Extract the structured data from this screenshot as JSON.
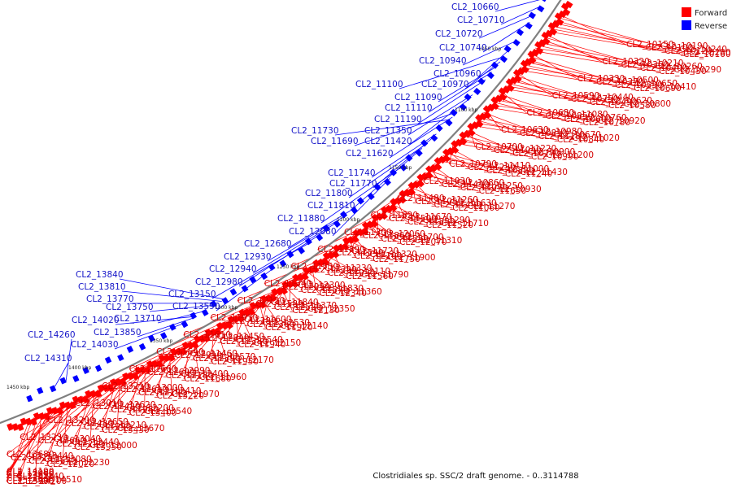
{
  "title": "Clostridiales sp. SSC/2 draft genome. - 0..3114788",
  "legend": [
    {
      "label": "Forward",
      "color": "#ff0000"
    },
    {
      "label": "Reverse",
      "color": "#0000ff"
    }
  ],
  "colors": {
    "forward": "#ff0000",
    "reverse": "#0000ff",
    "backbone": "#808080"
  },
  "ticks": [
    "1050 kbp",
    "1100 kbp",
    "1150 kbp",
    "1200 kbp",
    "1250 kbp",
    "1300 kbp",
    "1350 kbp",
    "1400 kbp",
    "1450 kbp"
  ],
  "forward_labels": [
    "CL2_10150",
    "CL2_10190",
    "CL2_10100",
    "CL2_10240",
    "CL2_10120",
    "CL2_10280",
    "CL2_10160",
    "CL2_10320",
    "CL2_10210",
    "CL2_10360",
    "CL2_10260",
    "CL2_10400",
    "CL2_10290",
    "CL2_10430",
    "CL2_10330",
    "CL2_10500",
    "CL2_10370",
    "CL2_10650",
    "CL2_10550",
    "CL2_10410",
    "CL2_10690",
    "CL2_10590",
    "CL2_10440",
    "CL2_10750",
    "CL2_10620",
    "CL2_10490",
    "CL2_10800",
    "CL2_10530",
    "CL2_10680",
    "CL2_11080",
    "CL2_10850",
    "CL2_10760",
    "CL2_10600",
    "CL2_10920",
    "CL2_10780",
    "CL2_10630",
    "CL2_10980",
    "CL2_10810",
    "CL2_10670",
    "CL2_11180",
    "CL2_11020",
    "CL2_10840",
    "CL2_10700",
    "CL2_11220",
    "CL2_11040",
    "CL2_10900",
    "CL2_10770",
    "CL2_11200",
    "CL2_10990",
    "CL2_10790",
    "CL2_11410",
    "CL2_11230",
    "CL2_11000",
    "CL2_10820",
    "CL2_11430",
    "CL2_11240",
    "CL2_11030",
    "CL2_10860",
    "CL2_11440",
    "CL2_11250",
    "CL2_11070",
    "CL2_10930",
    "CL2_11650",
    "CL2_11480",
    "CL2_11260",
    "CL2_11050",
    "CL2_11630",
    "CL2_11490",
    "CL2_11270",
    "CL2_11060",
    "CL2_11820",
    "CL2_11670",
    "CL2_11500",
    "CL2_11290",
    "CL2_11850",
    "CL2_11710",
    "CL2_11520",
    "CL2_11300",
    "CL2_12060",
    "CL2_11860",
    "CL2_11700",
    "CL2_11530",
    "CL2_11310",
    "CL2_12070",
    "CL2_11890",
    "CL2_11720",
    "CL2_11540",
    "CL2_11320",
    "CL2_12100",
    "CL2_11900",
    "CL2_11750",
    "CL2_11550",
    "CL2_11330",
    "CL2_12320",
    "CL2_12110",
    "CL2_11930",
    "CL2_11790",
    "CL2_11560",
    "CL2_11340",
    "CL2_12300",
    "CL2_12010",
    "CL2_11830",
    "CL2_11570",
    "CL2_11360",
    "CL2_12340",
    "CL2_12120",
    "CL2_11840",
    "CL2_11580",
    "CL2_11370",
    "CL2_12520",
    "CL2_12350",
    "CL2_12130",
    "CL2_11910",
    "CL2_11600",
    "CL2_11380",
    "CL2_12530",
    "CL2_12360",
    "CL2_12140",
    "CL2_11920",
    "CL2_11610",
    "CL2_11450",
    "CL2_12840",
    "CL2_12540",
    "CL2_12380",
    "CL2_12150",
    "CL2_11940",
    "CL2_11640",
    "CL2_11460",
    "CL2_12910",
    "CL2_12570",
    "CL2_12390",
    "CL2_12170",
    "CL2_11950",
    "CL2_11660",
    "CL2_12990",
    "CL2_12600",
    "CL2_12400",
    "CL2_12180",
    "CL2_11960",
    "CL2_11680",
    "CL2_13210",
    "CL2_13000",
    "CL2_12610",
    "CL2_12410",
    "CL2_12190",
    "CL2_11970",
    "CL2_13220",
    "CL2_13010",
    "CL2_12620",
    "CL2_12420",
    "CL2_12200",
    "CL2_11980",
    "CL2_13540",
    "CL2_13400",
    "CL2_13200",
    "CL2_12650",
    "CL2_12430",
    "CL2_12210",
    "CL2_11990",
    "CL2_13670",
    "CL2_13430",
    "CL2_13230",
    "CL2_13040",
    "CL2_12660",
    "CL2_12440",
    "CL2_12220",
    "CL2_12000",
    "CL2_13950",
    "CL2_13680",
    "CL2_13440",
    "CL2_13250",
    "CL2_13080",
    "CL2_12670",
    "CL2_12230",
    "CL2_12020",
    "CL2_14190",
    "CL2_13960",
    "CL2_13690",
    "CL2_12240",
    "CL2_12030",
    "CL2_14510",
    "CL2_14200",
    "CL2_13970",
    "CL2_13700"
  ],
  "reverse_labels": [
    "CL2_10660",
    "CL2_10710",
    "CL2_10720",
    "CL2_10740",
    "CL2_10940",
    "CL2_10960",
    "CL2_11100",
    "CL2_10970",
    "CL2_11090",
    "CL2_11110",
    "CL2_11190",
    "CL2_11730",
    "CL2_11350",
    "CL2_11690",
    "CL2_11420",
    "CL2_11620",
    "CL2_11740",
    "CL2_11770",
    "CL2_11800",
    "CL2_11810",
    "CL2_11880",
    "CL2_12080",
    "CL2_12680",
    "CL2_12930",
    "CL2_12940",
    "CL2_12980",
    "CL2_13150",
    "CL2_13590",
    "CL2_13840",
    "CL2_13810",
    "CL2_13770",
    "CL2_13750",
    "CL2_13710",
    "CL2_14020",
    "CL2_13850",
    "CL2_14030",
    "CL2_14260",
    "CL2_14310"
  ]
}
